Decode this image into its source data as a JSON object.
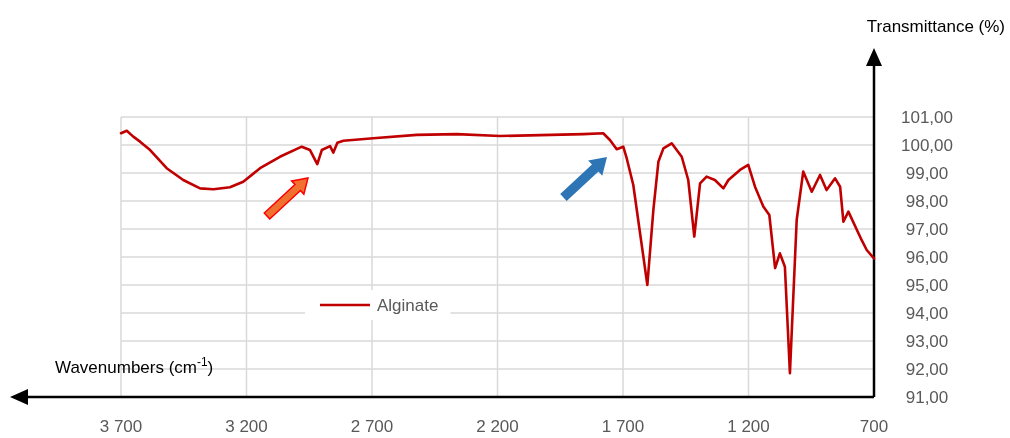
{
  "chart_data": {
    "type": "line",
    "xlabel": "Wavenumbers (cm$^{-1}$)",
    "ylabel": "Transmittance (%)",
    "xlim": [
      3700,
      700
    ],
    "xticks": [
      {
        "value": 3700,
        "label": "3 700"
      },
      {
        "value": 3200,
        "label": "3 200"
      },
      {
        "value": 2700,
        "label": "2 700"
      },
      {
        "value": 2200,
        "label": "2 200"
      },
      {
        "value": 1700,
        "label": "1 700"
      },
      {
        "value": 1200,
        "label": "1 200"
      },
      {
        "value": 700,
        "label": "700"
      }
    ],
    "ylim": [
      91,
      101
    ],
    "yticks": [
      {
        "value": 91,
        "label": "91,00"
      },
      {
        "value": 92,
        "label": "92,00"
      },
      {
        "value": 93,
        "label": "93,00"
      },
      {
        "value": 94,
        "label": "94,00"
      },
      {
        "value": 95,
        "label": "95,00"
      },
      {
        "value": 96,
        "label": "96,00"
      },
      {
        "value": 97,
        "label": "97,00"
      },
      {
        "value": 98,
        "label": "98,00"
      },
      {
        "value": 99,
        "label": "99,00"
      },
      {
        "value": 100,
        "label": "100,00"
      },
      {
        "value": 101,
        "label": "101,00"
      }
    ],
    "grid": true,
    "legend": "bottom",
    "line_style": "solid",
    "series": [
      {
        "name": "Alginate",
        "color": "#c00000",
        "x": [
          3700,
          3677,
          3651,
          3624,
          3584,
          3518,
          3452,
          3385,
          3332,
          3266,
          3213,
          3146,
          3067,
          2980,
          2947,
          2918,
          2900,
          2867,
          2854,
          2838,
          2814,
          2695,
          2522,
          2363,
          2190,
          1858,
          1779,
          1752,
          1725,
          1699,
          1685,
          1659,
          1632,
          1603,
          1579,
          1559,
          1539,
          1506,
          1466,
          1440,
          1416,
          1393,
          1367,
          1334,
          1300,
          1280,
          1234,
          1201,
          1174,
          1141,
          1117,
          1094,
          1075,
          1055,
          1035,
          1008,
          982,
          948,
          915,
          889,
          855,
          835,
          822,
          802,
          749,
          729,
          700
        ],
        "values": [
          100.42,
          100.51,
          100.3,
          100.12,
          99.82,
          99.17,
          98.75,
          98.45,
          98.42,
          98.49,
          98.69,
          99.17,
          99.58,
          99.94,
          99.82,
          99.32,
          99.82,
          99.96,
          99.73,
          100.08,
          100.15,
          100.24,
          100.36,
          100.39,
          100.32,
          100.39,
          100.42,
          100.18,
          99.85,
          99.94,
          99.52,
          98.57,
          96.85,
          95.0,
          97.68,
          99.4,
          99.88,
          100.06,
          99.58,
          98.75,
          96.73,
          98.63,
          98.87,
          98.75,
          98.45,
          98.75,
          99.11,
          99.29,
          98.51,
          97.8,
          97.5,
          95.6,
          96.13,
          95.65,
          91.85,
          97.32,
          99.05,
          98.33,
          98.93,
          98.39,
          98.81,
          98.51,
          97.26,
          97.62,
          96.6,
          96.25,
          95.95
        ]
      }
    ]
  }
}
